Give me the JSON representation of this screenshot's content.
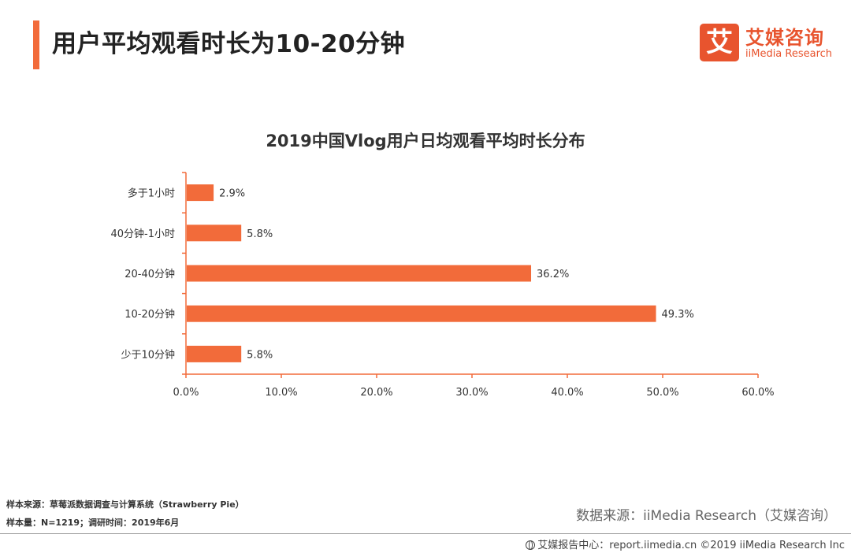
{
  "page": {
    "title": "用户平均观看时长为10-20分钟"
  },
  "logo": {
    "mark": "艾",
    "name_cn": "艾媒咨询",
    "name_en": "iiMedia Research"
  },
  "chart_data": {
    "type": "bar",
    "orientation": "horizontal",
    "title": "2019中国Vlog用户日均观看平均时长分布",
    "categories": [
      "多于1小时",
      "40分钟-1小时",
      "20-40分钟",
      "10-20分钟",
      "少于10分钟"
    ],
    "values": [
      2.9,
      5.8,
      36.2,
      49.3,
      5.8
    ],
    "value_labels": [
      "2.9%",
      "5.8%",
      "36.2%",
      "49.3%",
      "5.8%"
    ],
    "xlim": [
      0,
      60
    ],
    "xticks": [
      0,
      10,
      20,
      30,
      40,
      50,
      60
    ],
    "xtick_labels": [
      "0.0%",
      "10.0%",
      "20.0%",
      "30.0%",
      "40.0%",
      "50.0%",
      "60.0%"
    ],
    "xlabel": "",
    "ylabel": "",
    "grid": false,
    "bar_color": "#f26b3a",
    "axis_color": "#f26b3a"
  },
  "footer": {
    "sample_source": "样本来源：草莓派数据调查与计算系统（Strawberry  Pie）",
    "sample_size": "样本量：N=1219；调研时间：2019年6月",
    "data_source": "数据来源：iiMedia Research（艾媒咨询）",
    "copyright": "艾媒报告中心：report.iimedia.cn  ©2019  iiMedia Research  Inc"
  },
  "colors": {
    "accent": "#f26b3a",
    "logo": "#e8542e"
  }
}
